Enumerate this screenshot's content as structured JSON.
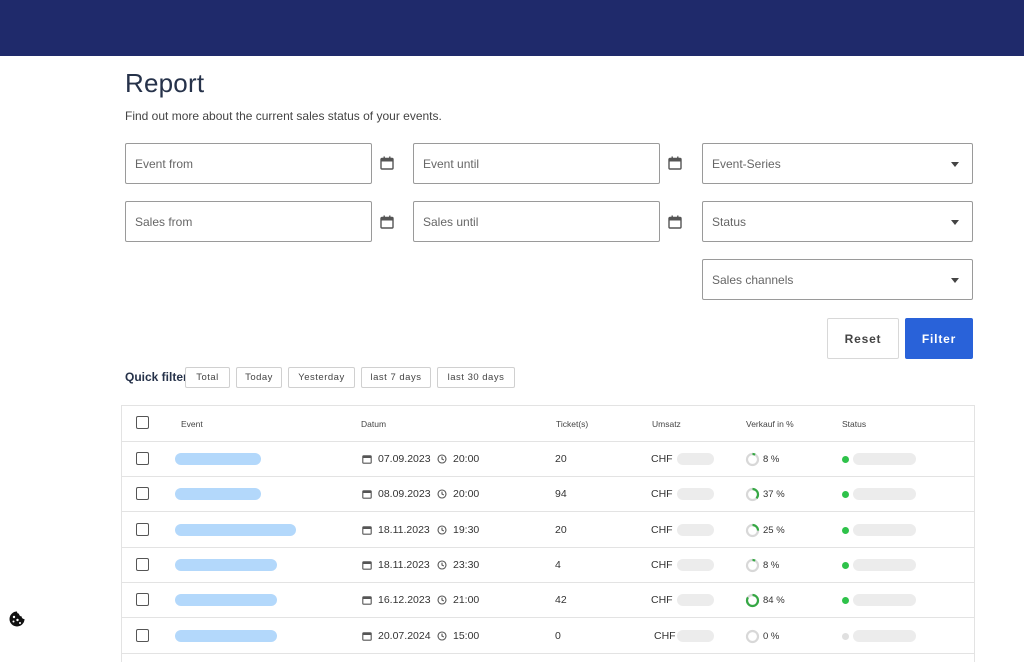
{
  "header": {
    "title": "Report",
    "subtitle": "Find out more about the current sales status of your events."
  },
  "filters": {
    "event_from": "Event from",
    "event_until": "Event until",
    "event_series": "Event-Series",
    "sales_from": "Sales from",
    "sales_until": "Sales until",
    "status": "Status",
    "sales_channels": "Sales channels"
  },
  "actions": {
    "reset": "Reset",
    "filter": "Filter"
  },
  "quick_filter": {
    "label": "Quick filter",
    "options": [
      "Total",
      "Today",
      "Yesterday",
      "last 7 days",
      "last 30 days"
    ]
  },
  "table": {
    "columns": [
      "Event",
      "Datum",
      "Ticket(s)",
      "Umsatz",
      "Verkauf in %",
      "Status"
    ],
    "rows": [
      {
        "date": "07.09.2023",
        "time": "20:00",
        "tickets": "20",
        "currency": "CHF",
        "percent": "8 %",
        "pct": 8,
        "status_color": "#2ec24a"
      },
      {
        "date": "08.09.2023",
        "time": "20:00",
        "tickets": "94",
        "currency": "CHF",
        "percent": "37 %",
        "pct": 37,
        "status_color": "#2ec24a"
      },
      {
        "date": "18.11.2023",
        "time": "19:30",
        "tickets": "20",
        "currency": "CHF",
        "percent": "25 %",
        "pct": 25,
        "status_color": "#2ec24a"
      },
      {
        "date": "18.11.2023",
        "time": "23:30",
        "tickets": "4",
        "currency": "CHF",
        "percent": "8 %",
        "pct": 8,
        "status_color": "#2ec24a"
      },
      {
        "date": "16.12.2023",
        "time": "21:00",
        "tickets": "42",
        "currency": "CHF",
        "percent": "84 %",
        "pct": 84,
        "status_color": "#2ec24a"
      },
      {
        "date": "20.07.2024",
        "time": "15:00",
        "tickets": "0",
        "currency": "CHF",
        "percent": "0 %",
        "pct": 0,
        "status_color": "#e0e0e0"
      }
    ]
  },
  "colors": {
    "topbar": "#1f2a6b",
    "accent": "#2962d9",
    "progress": "#36a845",
    "event_placeholder": "#b3d8fb"
  },
  "icons": [
    "calendar-icon",
    "clock-icon",
    "chevron-down-icon",
    "cookie-icon"
  ]
}
